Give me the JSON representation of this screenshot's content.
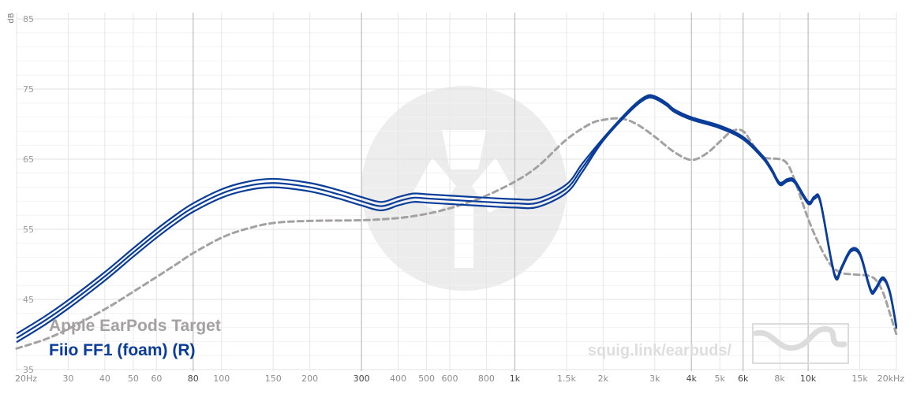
{
  "chart_data": {
    "type": "line",
    "y_unit": "dB",
    "x_scale": "log",
    "xlim": [
      20,
      20000
    ],
    "ylim": [
      35,
      85
    ],
    "yticks": [
      35,
      45,
      55,
      65,
      75,
      85
    ],
    "x_ticks": [
      {
        "value": 20,
        "label": "20Hz",
        "major": false
      },
      {
        "value": 30,
        "label": "30",
        "major": false
      },
      {
        "value": 40,
        "label": "40",
        "major": false
      },
      {
        "value": 50,
        "label": "50",
        "major": false
      },
      {
        "value": 60,
        "label": "60",
        "major": false
      },
      {
        "value": 80,
        "label": "80",
        "major": true
      },
      {
        "value": 100,
        "label": "100",
        "major": false
      },
      {
        "value": 150,
        "label": "150",
        "major": false
      },
      {
        "value": 200,
        "label": "200",
        "major": false
      },
      {
        "value": 300,
        "label": "300",
        "major": true
      },
      {
        "value": 400,
        "label": "400",
        "major": false
      },
      {
        "value": 500,
        "label": "500",
        "major": false
      },
      {
        "value": 600,
        "label": "600",
        "major": false
      },
      {
        "value": 800,
        "label": "800",
        "major": false
      },
      {
        "value": 1000,
        "label": "1k",
        "major": true
      },
      {
        "value": 1500,
        "label": "1.5k",
        "major": false
      },
      {
        "value": 2000,
        "label": "2k",
        "major": false
      },
      {
        "value": 3000,
        "label": "3k",
        "major": false
      },
      {
        "value": 4000,
        "label": "4k",
        "major": true
      },
      {
        "value": 5000,
        "label": "5k",
        "major": false
      },
      {
        "value": 6000,
        "label": "6k",
        "major": true
      },
      {
        "value": 8000,
        "label": "8k",
        "major": false
      },
      {
        "value": 10000,
        "label": "10k",
        "major": true
      },
      {
        "value": 15000,
        "label": "15k",
        "major": false
      },
      {
        "value": 20000,
        "label": "20kHz",
        "major": false
      }
    ],
    "grid": true,
    "legend_position": "bottom-left",
    "series": [
      {
        "name": "Apple EarPods Target",
        "color": "#a5a1a1",
        "dash": true,
        "points": [
          [
            20,
            38.0
          ],
          [
            25,
            39.3
          ],
          [
            30,
            40.8
          ],
          [
            40,
            43.6
          ],
          [
            50,
            46.1
          ],
          [
            60,
            48.2
          ],
          [
            70,
            50.0
          ],
          [
            80,
            51.6
          ],
          [
            100,
            53.8
          ],
          [
            120,
            55.0
          ],
          [
            150,
            55.9
          ],
          [
            200,
            56.2
          ],
          [
            300,
            56.3
          ],
          [
            400,
            56.6
          ],
          [
            500,
            57.2
          ],
          [
            600,
            58.0
          ],
          [
            700,
            58.9
          ],
          [
            800,
            59.8
          ],
          [
            1000,
            61.8
          ],
          [
            1200,
            64.0
          ],
          [
            1500,
            67.8
          ],
          [
            1800,
            70.0
          ],
          [
            2000,
            70.6
          ],
          [
            2300,
            70.8
          ],
          [
            2600,
            70.0
          ],
          [
            3000,
            68.2
          ],
          [
            3500,
            66.0
          ],
          [
            4000,
            64.9
          ],
          [
            4500,
            65.8
          ],
          [
            5000,
            67.5
          ],
          [
            5500,
            69.0
          ],
          [
            6000,
            69.0
          ],
          [
            6500,
            67.0
          ],
          [
            7000,
            65.3
          ],
          [
            8000,
            65.0
          ],
          [
            8500,
            64.3
          ],
          [
            9000,
            62.0
          ],
          [
            10000,
            56.5
          ],
          [
            11000,
            52.5
          ],
          [
            12000,
            49.8
          ],
          [
            13000,
            48.8
          ],
          [
            14000,
            48.6
          ],
          [
            15000,
            48.5
          ],
          [
            16000,
            48.4
          ],
          [
            17000,
            47.8
          ],
          [
            18000,
            46.0
          ],
          [
            19000,
            43.0
          ],
          [
            20000,
            40.0
          ]
        ]
      },
      {
        "name": "Fiio FF1 (foam) (R)",
        "color": "#0a3d99",
        "dash": false,
        "points": [
          [
            20,
            39.5
          ],
          [
            25,
            42.0
          ],
          [
            30,
            44.3
          ],
          [
            40,
            48.3
          ],
          [
            50,
            51.7
          ],
          [
            60,
            54.4
          ],
          [
            70,
            56.5
          ],
          [
            80,
            58.1
          ],
          [
            100,
            60.1
          ],
          [
            120,
            61.1
          ],
          [
            150,
            61.6
          ],
          [
            200,
            61.0
          ],
          [
            250,
            60.0
          ],
          [
            300,
            59.0
          ],
          [
            350,
            58.3
          ],
          [
            400,
            59.0
          ],
          [
            450,
            59.5
          ],
          [
            500,
            59.4
          ],
          [
            600,
            59.2
          ],
          [
            800,
            58.9
          ],
          [
            1000,
            58.7
          ],
          [
            1200,
            58.8
          ],
          [
            1500,
            60.8
          ],
          [
            1700,
            63.8
          ],
          [
            2000,
            67.8
          ],
          [
            2500,
            72.2
          ],
          [
            2800,
            73.8
          ],
          [
            3000,
            73.8
          ],
          [
            3300,
            72.8
          ],
          [
            3500,
            71.9
          ],
          [
            4000,
            70.8
          ],
          [
            5000,
            69.6
          ],
          [
            6000,
            68.0
          ],
          [
            7000,
            65.3
          ],
          [
            7500,
            63.5
          ],
          [
            8000,
            61.5
          ],
          [
            8500,
            62.0
          ],
          [
            9000,
            61.8
          ],
          [
            10000,
            58.8
          ],
          [
            10500,
            59.5
          ],
          [
            11000,
            59.0
          ],
          [
            12000,
            50.5
          ],
          [
            12500,
            48.0
          ],
          [
            13000,
            49.5
          ],
          [
            14000,
            52.0
          ],
          [
            15000,
            51.5
          ],
          [
            16000,
            47.5
          ],
          [
            16500,
            46.0
          ],
          [
            17000,
            46.5
          ],
          [
            18000,
            48.0
          ],
          [
            19000,
            46.0
          ],
          [
            20000,
            41.0
          ]
        ]
      }
    ],
    "extra_measurement_offsets_db": [
      0.6,
      -0.6
    ]
  },
  "watermark": {
    "text": "squig.link/earbuds/"
  }
}
